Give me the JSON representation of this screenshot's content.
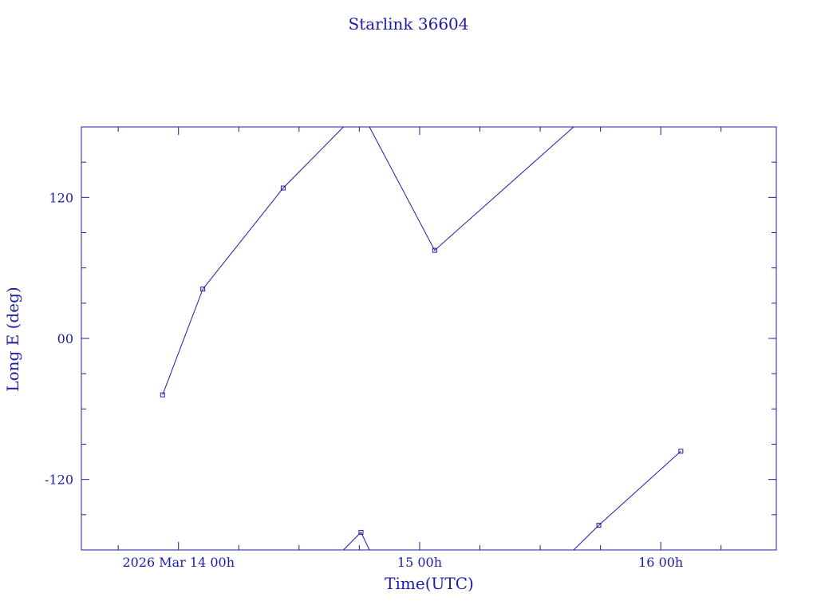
{
  "chart_data": {
    "type": "line",
    "title": "Starlink 36604",
    "xlabel": "Time(UTC)",
    "ylabel": "Long E (deg)",
    "x_unit": "hours",
    "x_ticks": [
      {
        "value": "2026-03-14T00:00Z",
        "label": "2026 Mar 14  00h"
      },
      {
        "value": "2026-03-15T00:00Z",
        "label": "15  00h"
      },
      {
        "value": "2026-03-16T00:00Z",
        "label": "16  00h"
      }
    ],
    "y_ticks": [
      {
        "value": 120,
        "label": "120"
      },
      {
        "value": 0,
        "label": "00"
      },
      {
        "value": -120,
        "label": "-120"
      }
    ],
    "xlim": [
      "2026-03-13T14:20Z",
      "2026-03-16T11:30Z"
    ],
    "ylim": [
      -180,
      180
    ],
    "color": "#1c1ca8",
    "grid": false,
    "series": [
      {
        "points": [
          {
            "t": "2026-03-13T22:25Z",
            "lon": -48
          },
          {
            "t": "2026-03-14T02:25Z",
            "lon": 42
          },
          {
            "t": "2026-03-14T10:25Z",
            "lon": 128
          },
          {
            "t": "2026-03-14T16:25Z",
            "lon": 180
          }
        ],
        "markers": [
          true,
          true,
          true,
          false
        ]
      },
      {
        "points": [
          {
            "t": "2026-03-14T16:25Z",
            "lon": -180
          },
          {
            "t": "2026-03-14T18:10Z",
            "lon": -165
          },
          {
            "t": "2026-03-14T19:00Z",
            "lon": -180
          }
        ],
        "markers": [
          false,
          true,
          false
        ]
      },
      {
        "points": [
          {
            "t": "2026-03-14T19:00Z",
            "lon": 180
          },
          {
            "t": "2026-03-15T01:30Z",
            "lon": 75
          },
          {
            "t": "2026-03-15T15:20Z",
            "lon": 180
          }
        ],
        "markers": [
          false,
          true,
          false
        ]
      },
      {
        "points": [
          {
            "t": "2026-03-15T15:20Z",
            "lon": -180
          },
          {
            "t": "2026-03-15T17:50Z",
            "lon": -159
          },
          {
            "t": "2026-03-16T02:00Z",
            "lon": -96
          }
        ],
        "markers": [
          false,
          true,
          true
        ]
      }
    ]
  }
}
